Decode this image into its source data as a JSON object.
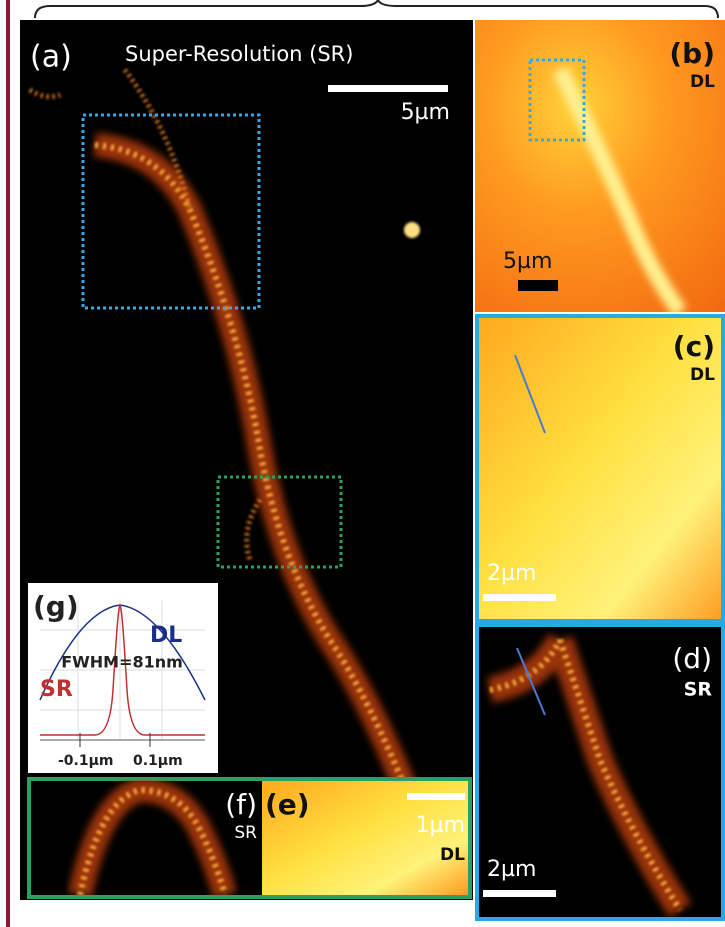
{
  "panels": {
    "a": {
      "label": "(a)",
      "title": "Super-Resolution (SR)",
      "scale": "5µm"
    },
    "b": {
      "label": "(b)",
      "mode": "DL",
      "scale": "5µm"
    },
    "c": {
      "label": "(c)",
      "mode": "DL",
      "scale": "2µm"
    },
    "d": {
      "label": "(d)",
      "mode": "SR",
      "scale": "2µm"
    },
    "e": {
      "label": "(e)",
      "mode": "DL",
      "scale": "1µm"
    },
    "f": {
      "label": "(f)",
      "mode": "SR"
    },
    "g": {
      "label": "(g)",
      "dl": "DL",
      "fwhm": "FWHM=81nm",
      "sr": "SR",
      "left_tick": "-0.1µm",
      "right_tick": "0.1µm"
    }
  }
}
